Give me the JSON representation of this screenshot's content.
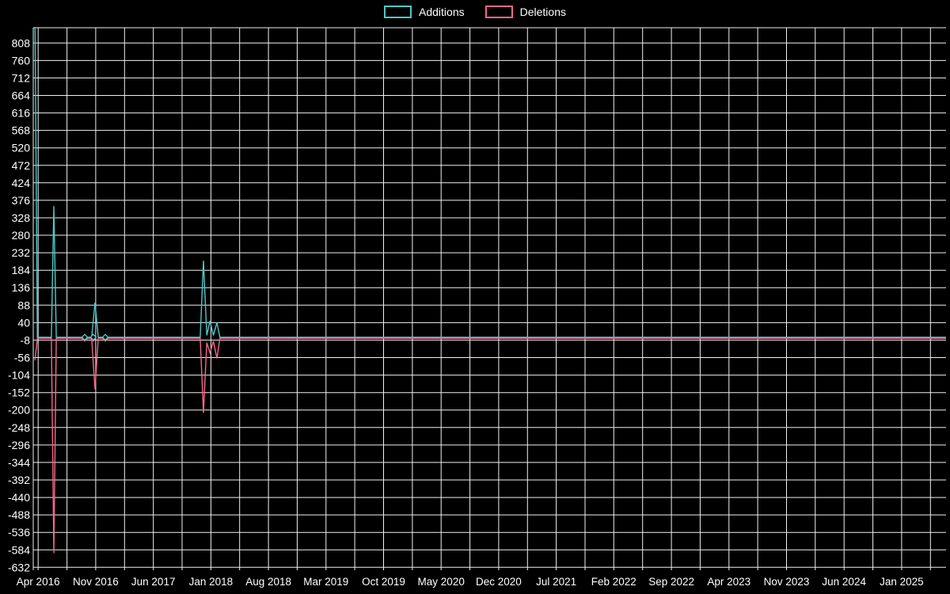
{
  "legend": {
    "additions_label": "Additions",
    "deletions_label": "Deletions"
  },
  "chart_data": {
    "type": "line",
    "title": "",
    "legend_position": "top-center",
    "grid": true,
    "colors": {
      "additions": "#4fc8c8",
      "deletions": "#f4698b",
      "grid": "#f0f0f0",
      "text": "#ffffff",
      "background": "#000000"
    },
    "x_unit": "months since Apr 2016",
    "x_tick_labels": [
      "Apr 2016",
      "Nov 2016",
      "Jun 2017",
      "Jan 2018",
      "Aug 2018",
      "Mar 2019",
      "Oct 2019",
      "May 2020",
      "Dec 2020",
      "Jul 2021",
      "Feb 2022",
      "Sep 2022",
      "Apr 2023",
      "Nov 2023",
      "Jun 2024",
      "Jan 2025"
    ],
    "x_tick_positions": [
      0,
      7,
      14,
      21,
      28,
      35,
      42,
      49,
      56,
      63,
      70,
      77,
      84,
      91,
      98,
      105
    ],
    "x_range": [
      -0.6,
      110.4
    ],
    "x_grid_step": 3.5,
    "y_ticks": [
      808,
      760,
      712,
      664,
      616,
      568,
      520,
      472,
      424,
      376,
      328,
      280,
      232,
      184,
      136,
      88,
      40,
      -8,
      -56,
      -104,
      -152,
      -200,
      -248,
      -296,
      -344,
      -392,
      -440,
      -488,
      -536,
      -584,
      -632
    ],
    "y_range": [
      -640,
      850
    ],
    "series": [
      {
        "name": "Additions",
        "color": "#4fc8c8",
        "points": [
          [
            -0.4,
            900
          ],
          [
            -0.1,
            0
          ],
          [
            1.6,
            0
          ],
          [
            1.9,
            360
          ],
          [
            2.2,
            0
          ],
          [
            5.66,
            0
          ],
          [
            6.5,
            0
          ],
          [
            6.91,
            95
          ],
          [
            7.3,
            0
          ],
          [
            8.16,
            0
          ],
          [
            19.7,
            0
          ],
          [
            20.1,
            210
          ],
          [
            20.5,
            5
          ],
          [
            20.9,
            45
          ],
          [
            21.3,
            5
          ],
          [
            21.73,
            40
          ],
          [
            22.1,
            0
          ],
          [
            110.4,
            0
          ]
        ]
      },
      {
        "name": "Deletions",
        "color": "#f4698b",
        "points": [
          [
            -0.4,
            -60
          ],
          [
            -0.1,
            0
          ],
          [
            1.6,
            0
          ],
          [
            1.9,
            -590
          ],
          [
            2.2,
            0
          ],
          [
            5.66,
            0
          ],
          [
            6.5,
            0
          ],
          [
            6.91,
            -140
          ],
          [
            7.3,
            0
          ],
          [
            8.16,
            0
          ],
          [
            19.7,
            0
          ],
          [
            20.1,
            -205
          ],
          [
            20.5,
            -12
          ],
          [
            20.9,
            -40
          ],
          [
            21.3,
            -8
          ],
          [
            21.73,
            -55
          ],
          [
            22.1,
            0
          ],
          [
            110.4,
            0
          ]
        ]
      }
    ],
    "markers": [
      {
        "x": 5.66,
        "additions": 0,
        "deletions": 0
      },
      {
        "x": 6.7,
        "additions": 0,
        "deletions": 0
      },
      {
        "x": 8.16,
        "additions": 0,
        "deletions": 0
      }
    ]
  }
}
